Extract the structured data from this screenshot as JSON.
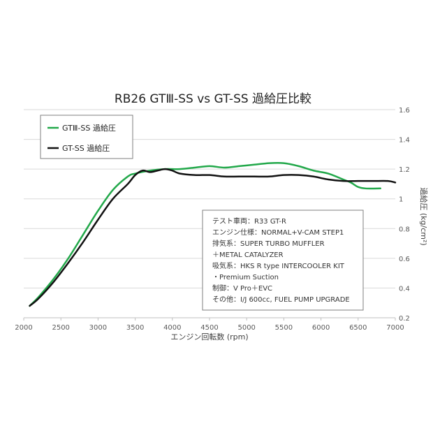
{
  "chart_data": {
    "type": "line",
    "title": "RB26 GTⅢ-SS vs GT-SS 過給圧比較",
    "xlabel": "エンジン回転数 (rpm)",
    "ylabel": "過給圧 (kg/cm²)",
    "xlim": [
      2000,
      7000
    ],
    "ylim": [
      0.2,
      1.6
    ],
    "x_ticks": [
      "2000",
      "2500",
      "3000",
      "3500",
      "4000",
      "4500",
      "5000",
      "5500",
      "6000",
      "6500",
      "7000"
    ],
    "y_ticks": [
      "0.2",
      "0.4",
      "0.6",
      "0.8",
      "1",
      "1.2",
      "1.4",
      "1.6"
    ],
    "grid": "horizontal",
    "legend": "top-left",
    "series": [
      {
        "name": "GTⅢ-SS 過給圧",
        "color": "#22a84a",
        "x": [
          2080,
          2200,
          2400,
          2600,
          2800,
          3000,
          3200,
          3400,
          3500,
          3700,
          3900,
          4100,
          4300,
          4500,
          4700,
          4900,
          5100,
          5300,
          5500,
          5700,
          5900,
          6100,
          6300,
          6400,
          6500,
          6600,
          6800
        ],
        "y": [
          0.28,
          0.34,
          0.46,
          0.6,
          0.76,
          0.92,
          1.06,
          1.15,
          1.17,
          1.19,
          1.2,
          1.2,
          1.21,
          1.22,
          1.21,
          1.22,
          1.23,
          1.24,
          1.24,
          1.22,
          1.19,
          1.17,
          1.13,
          1.11,
          1.08,
          1.07,
          1.07
        ]
      },
      {
        "name": "GT-SS 過給圧",
        "color": "#111111",
        "x": [
          2080,
          2200,
          2400,
          2600,
          2800,
          3000,
          3200,
          3400,
          3500,
          3600,
          3700,
          3800,
          3900,
          4000,
          4100,
          4300,
          4500,
          4700,
          4900,
          5100,
          5300,
          5500,
          5700,
          5900,
          6100,
          6300,
          6500,
          6700,
          6900,
          7000
        ],
        "y": [
          0.28,
          0.33,
          0.44,
          0.57,
          0.71,
          0.86,
          1.0,
          1.1,
          1.16,
          1.19,
          1.18,
          1.19,
          1.2,
          1.19,
          1.17,
          1.16,
          1.16,
          1.15,
          1.15,
          1.15,
          1.15,
          1.16,
          1.16,
          1.15,
          1.13,
          1.12,
          1.12,
          1.12,
          1.12,
          1.11
        ]
      }
    ],
    "annotation": [
      "テスト車両：R33 GT-R",
      "エンジン仕様：NORMAL+V-CAM STEP1",
      "排気系：SUPER TURBO MUFFLER",
      "＋METAL CATALYZER",
      "吸気系：HKS R type INTERCOOLER KIT",
      "・Premium Suction",
      "制御：V Pro＋EVC",
      "その他：I/J 600cc, FUEL PUMP UPGRADE"
    ]
  }
}
